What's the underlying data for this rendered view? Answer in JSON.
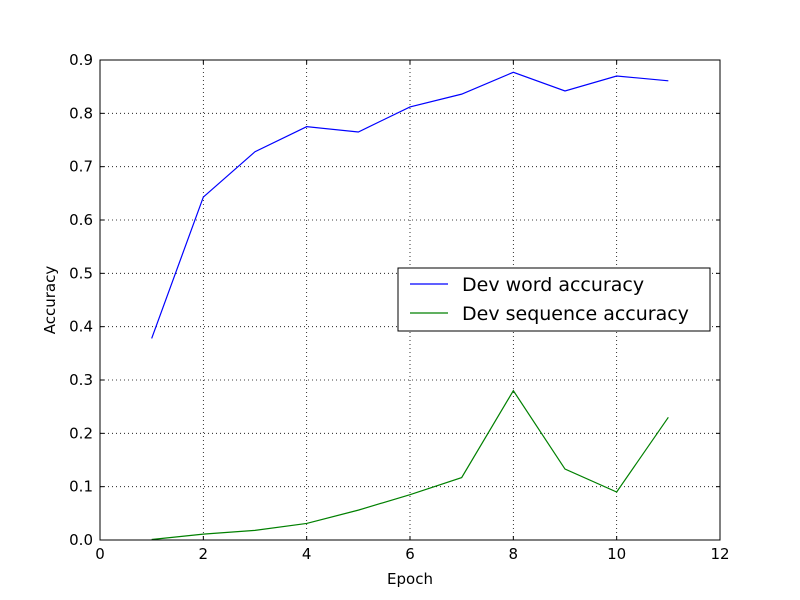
{
  "chart_data": {
    "type": "line",
    "title": "",
    "xlabel": "Epoch",
    "ylabel": "Accuracy",
    "xlim": [
      0,
      12
    ],
    "ylim": [
      0.0,
      0.9
    ],
    "xticks": [
      0,
      2,
      4,
      6,
      8,
      10,
      12
    ],
    "yticks": [
      0.0,
      0.1,
      0.2,
      0.3,
      0.4,
      0.5,
      0.6,
      0.7,
      0.8,
      0.9
    ],
    "xtick_labels": [
      "0",
      "2",
      "4",
      "6",
      "8",
      "10",
      "12"
    ],
    "ytick_labels": [
      "0.0",
      "0.1",
      "0.2",
      "0.3",
      "0.4",
      "0.5",
      "0.6",
      "0.7",
      "0.8",
      "0.9"
    ],
    "grid": true,
    "legend_position": "center-right",
    "x": [
      1,
      2,
      3,
      4,
      5,
      6,
      7,
      8,
      9,
      10,
      11
    ],
    "series": [
      {
        "name": "Dev word accuracy",
        "color": "#0000ff",
        "values": [
          0.378,
          0.643,
          0.728,
          0.775,
          0.765,
          0.812,
          0.836,
          0.877,
          0.842,
          0.87,
          0.861
        ]
      },
      {
        "name": "Dev sequence accuracy",
        "color": "#008000",
        "values": [
          0.001,
          0.011,
          0.018,
          0.031,
          0.056,
          0.085,
          0.117,
          0.28,
          0.133,
          0.09,
          0.23
        ]
      }
    ]
  }
}
